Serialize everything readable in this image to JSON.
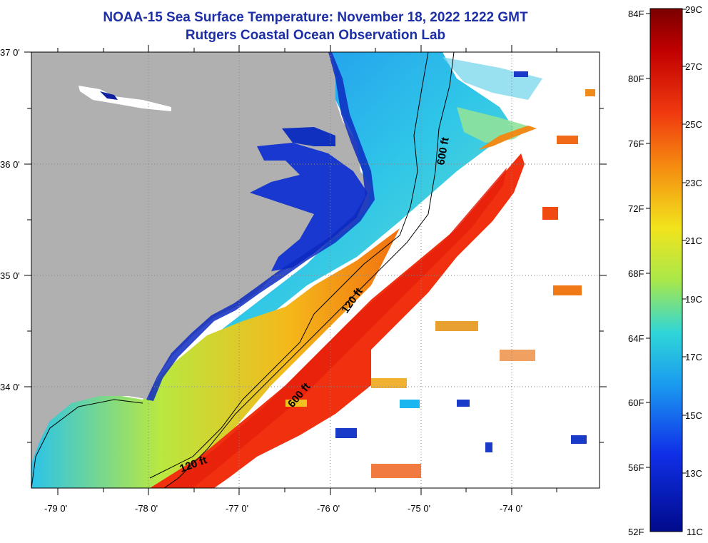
{
  "title": "NOAA-15 Sea Surface Temperature:  November 18, 2022 1222 GMT",
  "subtitle": "Rutgers Coastal Ocean Observation Lab",
  "lat_labels": [
    "37 0'",
    "36 0'",
    "35 0'",
    "34 0'"
  ],
  "lon_labels": [
    "-79 0'",
    "-78 0'",
    "-77 0'",
    "-76 0'",
    "-75 0'",
    "-74 0'"
  ],
  "contour_labels": [
    "600 ft",
    "120 ft",
    "600 ft",
    "120 ft"
  ],
  "colorbar": {
    "fahrenheit": [
      "84F",
      "80F",
      "76F",
      "72F",
      "68F",
      "64F",
      "60F",
      "56F",
      "52F"
    ],
    "celsius": [
      "29C",
      "27C",
      "25C",
      "23C",
      "21C",
      "19C",
      "17C",
      "15C",
      "13C",
      "11C"
    ]
  },
  "colors": {
    "title": "#1c2fa6",
    "land": "#b0b0b0",
    "cloud": "#ffffff",
    "cold": "#0a1fc8",
    "cool": "#1ab6f0",
    "mild": "#f2e41c",
    "warm": "#f03a10",
    "hot": "#8b0000"
  }
}
